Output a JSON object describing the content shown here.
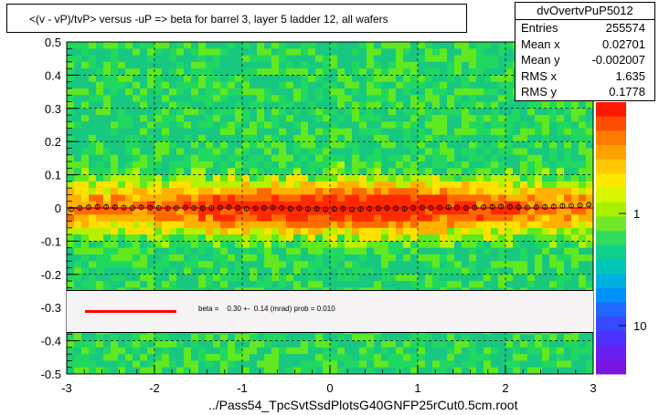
{
  "title": "<(v - vP)/tvP> versus  -uP => beta for barrel 3, layer 5 ladder 12, all wafers",
  "stats": {
    "name": "dvOvertvPuP5012",
    "rows": [
      {
        "key": "Entries",
        "value": "255574"
      },
      {
        "key": "Mean x",
        "value": "0.02701"
      },
      {
        "key": "Mean y",
        "value": "-0.002007"
      },
      {
        "key": "RMS x",
        "value": "1.635"
      },
      {
        "key": "RMS y",
        "value": "0.1778"
      }
    ]
  },
  "legend": {
    "line_color": "#ff0000",
    "text": "beta =    0.30 +-  0.14 (mrad) prob = 0.010"
  },
  "footer": "../Pass54_TpcSvtSsdPlotsG40GNFP25rCut0.5cm.root",
  "colorbar": {
    "labels": [
      "1",
      "10"
    ],
    "label_10_visible": "10",
    "label_1_visible": "1",
    "label_01_visible": "10"
  },
  "chart_data": {
    "type": "heatmap",
    "title": "<(v - vP)/tvP> versus  -uP => beta for barrel 3, layer 5 ladder 12, all wafers",
    "xlabel": "",
    "ylabel": "",
    "xlim": [
      -3,
      3
    ],
    "ylim": [
      -0.5,
      0.5
    ],
    "xticks": [
      "-3",
      "-2",
      "-1",
      "0",
      "1",
      "2",
      "3"
    ],
    "yticks": [
      "-0.5",
      "-0.4",
      "-0.3",
      "-0.2",
      "-0.1",
      "0",
      "0.1",
      "0.2",
      "0.3",
      "0.4",
      "0.5"
    ],
    "grid": true,
    "z_scale": "log",
    "profile": {
      "x": [
        -2.95,
        -2.85,
        -2.75,
        -2.65,
        -2.55,
        -2.45,
        -2.35,
        -2.25,
        -2.15,
        -2.05,
        -1.95,
        -1.85,
        -1.75,
        -1.65,
        -1.55,
        -1.45,
        -1.35,
        -1.25,
        -1.15,
        -1.05,
        -0.95,
        -0.85,
        -0.75,
        -0.65,
        -0.55,
        -0.45,
        -0.35,
        -0.25,
        -0.15,
        -0.05,
        0.05,
        0.15,
        0.25,
        0.35,
        0.45,
        0.55,
        0.65,
        0.75,
        0.85,
        0.95,
        1.05,
        1.15,
        1.25,
        1.35,
        1.45,
        1.55,
        1.65,
        1.75,
        1.85,
        1.95,
        2.05,
        2.15,
        2.25,
        2.35,
        2.45,
        2.55,
        2.65,
        2.75,
        2.85,
        2.95
      ],
      "y": [
        -0.004,
        0.0,
        0.002,
        0.003,
        0.003,
        0.002,
        0.001,
        0.0,
        0.002,
        0.001,
        0.0,
        -0.001,
        0.0,
        0.001,
        0.0,
        -0.001,
        0.0,
        0.001,
        0.002,
        0.0,
        -0.002,
        -0.001,
        0.0,
        0.001,
        0.0,
        -0.002,
        -0.001,
        -0.003,
        -0.002,
        -0.004,
        -0.003,
        -0.002,
        -0.004,
        -0.003,
        -0.002,
        -0.001,
        0.0,
        -0.001,
        -0.002,
        0.0,
        0.001,
        0.0,
        0.001,
        0.002,
        0.001,
        0.0,
        0.001,
        0.002,
        0.003,
        0.004,
        0.003,
        0.002,
        0.001,
        0.002,
        0.003,
        0.004,
        0.006,
        0.007,
        0.008,
        0.01
      ]
    },
    "fit_line": {
      "slope_mrad": 0.3,
      "error_mrad": 0.14,
      "prob": 0.01,
      "color": "#ff0000"
    }
  }
}
